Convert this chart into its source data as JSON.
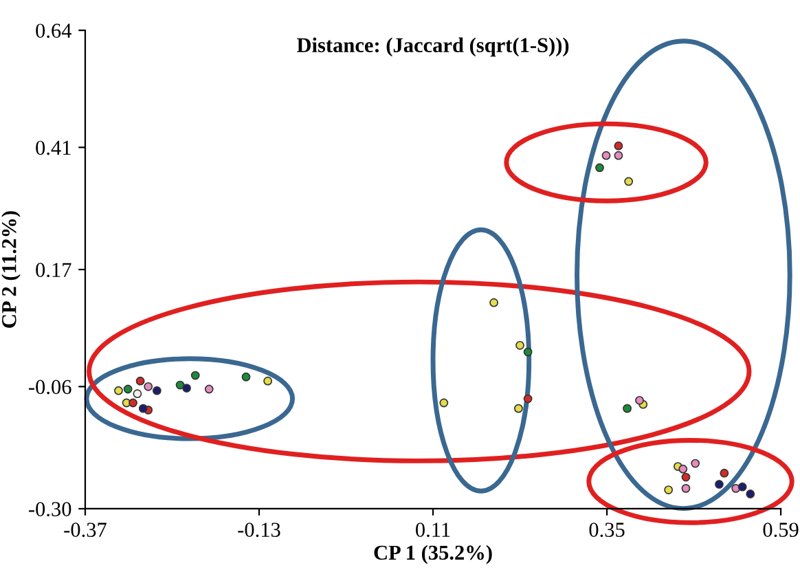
{
  "chart_data": {
    "type": "scatter",
    "title": "Distance: (Jaccard (sqrt(1-S)))",
    "xlabel": "CP 1 (35.2%)",
    "ylabel": "CP 2 (11.2%)",
    "xlim": [
      -0.37,
      0.59
    ],
    "xticks": [
      -0.37,
      -0.13,
      0.11,
      0.35,
      0.59
    ],
    "ylim": [
      -0.3,
      0.64
    ],
    "yticks": [
      {
        "value": -0.3,
        "label": "-0.30"
      },
      -0.06,
      0.17,
      0.41,
      0.64
    ],
    "grid": false,
    "legend": false,
    "marker": "circle",
    "series": [
      {
        "color": "#e3dc4c",
        "x": [
          -0.324,
          -0.313,
          -0.118,
          0.194,
          0.23,
          0.125,
          0.228,
          0.4,
          0.435,
          0.38,
          0.448
        ],
        "values": [
          -0.068,
          -0.092,
          -0.049,
          0.105,
          0.021,
          -0.092,
          -0.103,
          -0.095,
          -0.263,
          0.343,
          -0.217
        ]
      },
      {
        "color": "#1e8a3c",
        "x": [
          -0.311,
          -0.218,
          -0.239,
          -0.148,
          0.241,
          0.378,
          0.34
        ],
        "values": [
          -0.065,
          -0.038,
          -0.057,
          -0.041,
          0.008,
          -0.103,
          0.37
        ]
      },
      {
        "color": "#d42a2a",
        "x": [
          -0.294,
          -0.304,
          -0.283,
          0.241,
          0.459,
          0.512,
          0.366
        ],
        "values": [
          -0.049,
          -0.092,
          -0.106,
          -0.084,
          -0.238,
          -0.23,
          0.413
        ]
      },
      {
        "color": "#e58cc0",
        "x": [
          -0.283,
          -0.199,
          0.395,
          0.455,
          0.472,
          0.459,
          0.528,
          0.349,
          0.366
        ],
        "values": [
          -0.06,
          -0.065,
          -0.087,
          -0.222,
          -0.211,
          -0.26,
          -0.26,
          0.394,
          0.394
        ]
      },
      {
        "color": "#1c1c70",
        "x": [
          -0.271,
          -0.29,
          -0.23,
          0.505,
          0.537,
          0.548
        ],
        "values": [
          -0.068,
          -0.103,
          -0.063,
          -0.252,
          -0.257,
          -0.271
        ]
      },
      {
        "color": "#f4f0f0",
        "x": [
          -0.298
        ],
        "values": [
          -0.074
        ]
      }
    ]
  }
}
